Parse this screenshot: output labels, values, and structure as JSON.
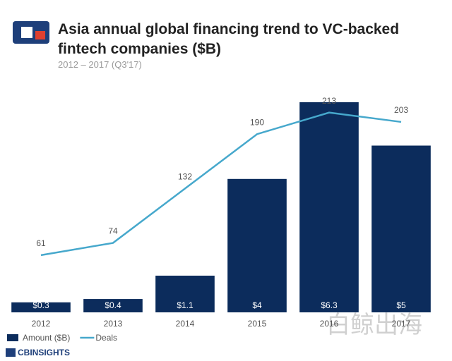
{
  "chart_data": {
    "type": "bar",
    "title": "Asia annual global financing trend to VC-backed fintech companies ($B)",
    "subtitle": "2012 – 2017 (Q3'17)",
    "categories": [
      "2012",
      "2013",
      "2014",
      "2015",
      "2016",
      "2017"
    ],
    "series": [
      {
        "name": "Amount ($B)",
        "type": "bar",
        "color": "#0c2c5c",
        "values": [
          0.3,
          0.4,
          1.1,
          4,
          6.3,
          5
        ],
        "value_labels": [
          "$0.3",
          "$0.4",
          "$1.1",
          "$4",
          "$6.3",
          "$5"
        ]
      },
      {
        "name": "Deals",
        "type": "line",
        "axis": "y2",
        "color": "#46a8cc",
        "values": [
          61,
          74,
          132,
          190,
          213,
          203
        ]
      }
    ],
    "ylim": [
      0,
      6.3
    ],
    "y2lim": [
      0,
      224
    ],
    "source": "CBINSIGHTS",
    "watermark": "白鲸出海"
  }
}
